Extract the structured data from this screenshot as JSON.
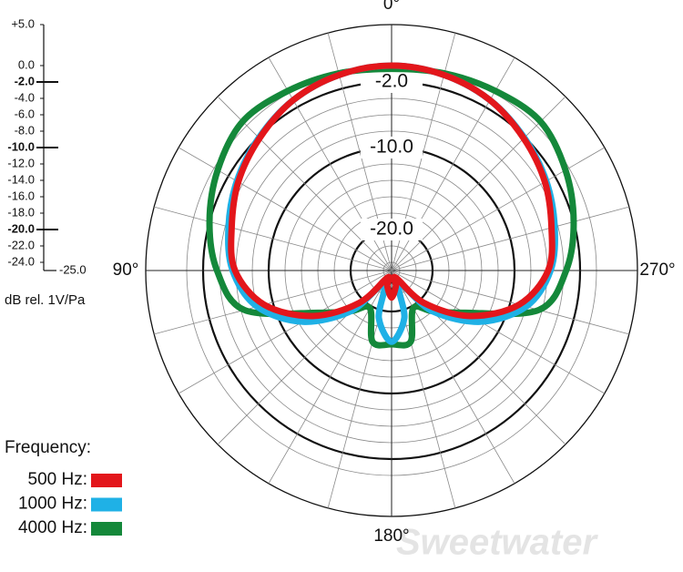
{
  "chart_data": {
    "type": "polar",
    "direction": "counterclockwise",
    "radial_label": "dB rel. 1V/Pa",
    "legend_title": "Frequency:",
    "watermark": "Sweetwater",
    "spoke_step": 15,
    "angles": [
      0,
      15,
      30,
      45,
      60,
      75,
      90,
      105,
      120,
      135,
      150,
      165,
      180,
      195,
      210,
      225,
      240,
      255,
      270,
      285,
      300,
      315,
      330,
      345
    ],
    "angle_ticks": [
      {
        "value": 0,
        "label": "0°"
      },
      {
        "value": 90,
        "label": "90°"
      },
      {
        "value": 180,
        "label": "180°"
      },
      {
        "value": 270,
        "label": "270°"
      }
    ],
    "rlim": [
      -25,
      5
    ],
    "rticks": [
      {
        "value": 5,
        "label": "+5.0"
      },
      {
        "value": 0,
        "label": "0.0"
      },
      {
        "value": -2,
        "label": "-2.0",
        "major": true
      },
      {
        "value": -4,
        "label": "-4.0"
      },
      {
        "value": -6,
        "label": "-6.0"
      },
      {
        "value": -8,
        "label": "-8.0"
      },
      {
        "value": -10,
        "label": "-10.0",
        "major": true
      },
      {
        "value": -12,
        "label": "-12.0"
      },
      {
        "value": -14,
        "label": "-14.0"
      },
      {
        "value": -16,
        "label": "-16.0"
      },
      {
        "value": -18,
        "label": "-18.0"
      },
      {
        "value": -20,
        "label": "-20.0",
        "major": true
      },
      {
        "value": -22,
        "label": "-22.0"
      },
      {
        "value": -24,
        "label": "-24.0"
      },
      {
        "value": -25,
        "label": "-25.0"
      }
    ],
    "series": [
      {
        "name": "500 Hz:",
        "color": "#e3161b",
        "values": [
          0,
          -0.3,
          -1.0,
          -2.2,
          -3.4,
          -4.8,
          -5.9,
          -8.9,
          -13.9,
          -19.4,
          -24,
          -23,
          -21.7,
          -23,
          -24,
          -19.4,
          -13.9,
          -8.9,
          -5.9,
          -4.8,
          -3.4,
          -2.2,
          -1.0,
          -0.3
        ]
      },
      {
        "name": "1000 Hz:",
        "color": "#1fb1e6",
        "values": [
          0,
          -0.3,
          -1.0,
          -2.1,
          -3.2,
          -4.4,
          -5.6,
          -8,
          -12.5,
          -18,
          -23,
          -19,
          -16.3,
          -19,
          -23,
          -18,
          -12.5,
          -8,
          -5.6,
          -4.4,
          -3.2,
          -2.1,
          -1.0,
          -0.3
        ]
      },
      {
        "name": "4000 Hz:",
        "color": "#14883a",
        "values": [
          -0.4,
          -0.1,
          0.3,
          0.7,
          -0.5,
          -2,
          -3.7,
          -6.4,
          -14.7,
          -18,
          -19.7,
          -16,
          -16,
          -16,
          -19.7,
          -18,
          -14.7,
          -6.4,
          -3.7,
          -2,
          -0.5,
          0.7,
          0.3,
          -0.1
        ]
      }
    ]
  }
}
